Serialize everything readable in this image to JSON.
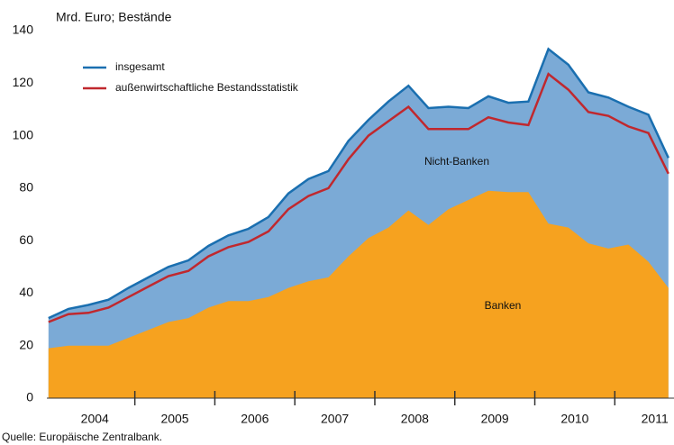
{
  "chart_data": {
    "type": "area-line",
    "y_label": "Mrd. Euro; Bestände",
    "source": "Quelle: Europäische Zentralbank.",
    "x": [
      2003.92,
      2004.17,
      2004.42,
      2004.67,
      2004.92,
      2005.17,
      2005.42,
      2005.67,
      2005.92,
      2006.17,
      2006.42,
      2006.67,
      2006.92,
      2007.17,
      2007.42,
      2007.67,
      2007.92,
      2008.17,
      2008.42,
      2008.67,
      2008.92,
      2009.17,
      2009.42,
      2009.67,
      2009.92,
      2010.17,
      2010.42,
      2010.67,
      2010.92,
      2011.17,
      2011.42,
      2011.67
    ],
    "series": [
      {
        "name": "insgesamt",
        "color": "#1a6fb0",
        "fill": "#7baad6",
        "values": [
          30.5,
          34,
          35.5,
          37.5,
          42,
          46,
          50,
          52.5,
          58,
          62,
          64.5,
          69,
          78,
          83.5,
          86.5,
          98,
          106,
          113,
          119,
          110.5,
          111,
          110.5,
          115,
          112.5,
          113,
          133,
          127,
          116.5,
          114.5,
          111,
          108,
          91.5
        ]
      },
      {
        "name": "außenwirtschaftliche Bestandsstatistik",
        "color": "#c0282e",
        "values": [
          29,
          32,
          32.5,
          34.5,
          38.5,
          42.5,
          46.5,
          48.5,
          54,
          57.5,
          59.5,
          63.5,
          72,
          77,
          80,
          91,
          100,
          105.5,
          111,
          102.5,
          102.5,
          102.5,
          107,
          105,
          104,
          123.5,
          117.5,
          109,
          107.5,
          103.5,
          101,
          85.5
        ]
      }
    ],
    "areas": [
      {
        "name": "Banken",
        "color": "#f6a21f",
        "values": [
          19,
          20,
          20,
          20,
          23,
          26,
          29,
          30.5,
          34.5,
          37,
          37,
          38.5,
          42,
          44.5,
          46,
          54,
          61,
          65,
          71.5,
          66,
          72,
          75.5,
          79,
          78.5,
          78.5,
          66.5,
          65,
          59,
          57,
          58.5,
          52,
          42
        ]
      }
    ],
    "annotations": [
      "Nicht-Banken"
    ],
    "xlim": [
      2003.9,
      2011.74
    ],
    "xticks": [
      {
        "value": 2004.5,
        "label": "2004"
      },
      {
        "value": 2005.5,
        "label": "2005"
      },
      {
        "value": 2006.5,
        "label": "2006"
      },
      {
        "value": 2007.5,
        "label": "2007"
      },
      {
        "value": 2008.5,
        "label": "2008"
      },
      {
        "value": 2009.5,
        "label": "2009"
      },
      {
        "value": 2010.5,
        "label": "2010"
      },
      {
        "value": 2011.5,
        "label": "2011"
      }
    ],
    "ylim": [
      0,
      140
    ],
    "yticks": [
      0,
      20,
      40,
      60,
      80,
      100,
      120,
      140
    ],
    "grid": false,
    "legend": "upper-left"
  }
}
